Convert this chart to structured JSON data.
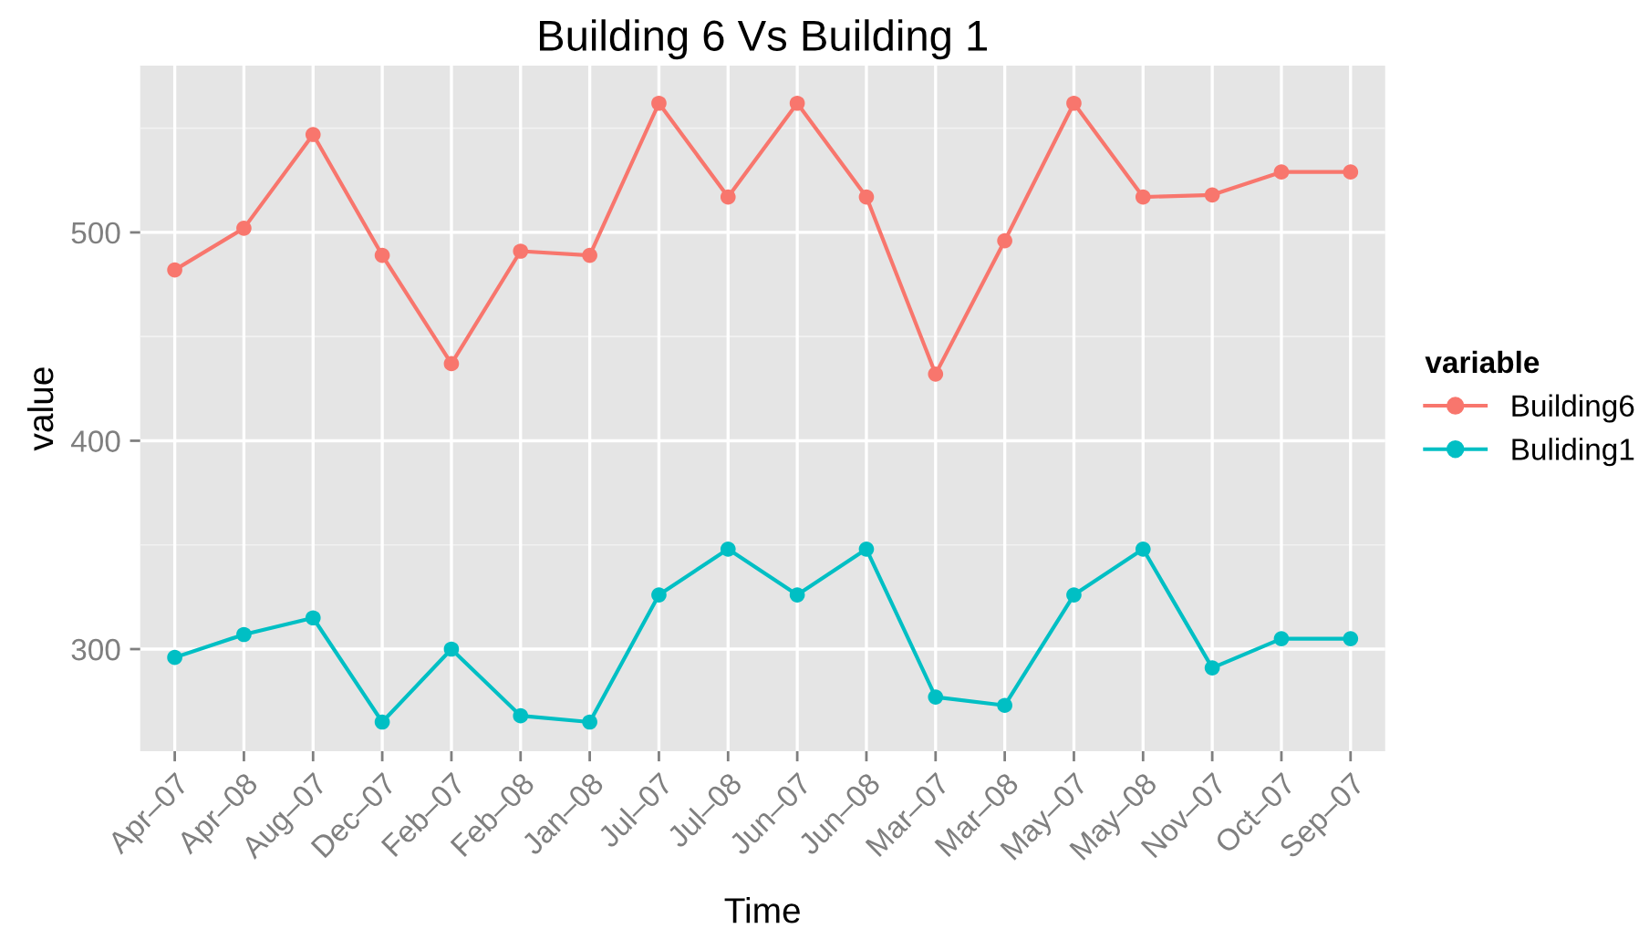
{
  "chart_data": {
    "type": "line",
    "title": "Building 6 Vs Building 1",
    "xlabel": "Time",
    "ylabel": "value",
    "legend_title": "variable",
    "categories": [
      "Apr–07",
      "Apr–08",
      "Aug–07",
      "Dec–07",
      "Feb–07",
      "Feb–08",
      "Jan–08",
      "Jul–07",
      "Jul–08",
      "Jun–07",
      "Jun–08",
      "Mar–07",
      "Mar–08",
      "May–07",
      "May–08",
      "Nov–07",
      "Oct–07",
      "Sep–07"
    ],
    "series": [
      {
        "name": "Building6",
        "color": "#f8766d",
        "values": [
          482,
          502,
          547,
          489,
          437,
          491,
          489,
          562,
          517,
          562,
          517,
          432,
          496,
          562,
          517,
          518,
          529,
          529
        ]
      },
      {
        "name": "Buliding1",
        "color": "#00bfc4",
        "values": [
          296,
          307,
          315,
          265,
          300,
          268,
          265,
          326,
          348,
          326,
          348,
          277,
          273,
          326,
          348,
          291,
          305,
          305
        ]
      }
    ],
    "ylim": [
      251,
      580
    ],
    "yticks": [
      300,
      400,
      500
    ],
    "grid": true,
    "legend": "right",
    "marker": "circle",
    "line_style": "solid"
  }
}
